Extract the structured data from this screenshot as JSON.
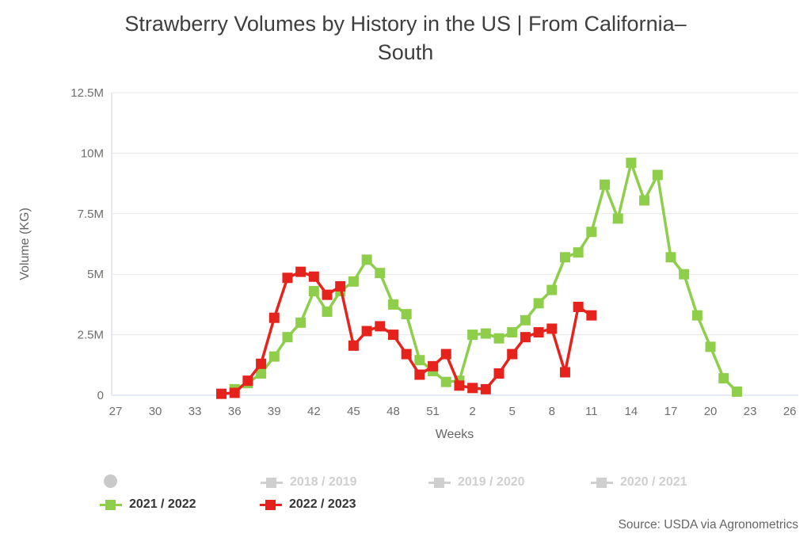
{
  "title": {
    "line1": "Strawberry Volumes by History in the US | From California–",
    "line2": "South"
  },
  "source": "Source: USDA via Agronometrics",
  "legend": {
    "hidden_marker_color": "#c9c9c9",
    "items": [
      {
        "label": "2018 / 2019",
        "color": "#cfcfcf",
        "state": "disabled"
      },
      {
        "label": "2019 / 2020",
        "color": "#cfcfcf",
        "state": "disabled"
      },
      {
        "label": "2020 / 2021",
        "color": "#cfcfcf",
        "state": "disabled"
      },
      {
        "label": "2021 / 2022",
        "color": "#8fce4b",
        "state": "active"
      },
      {
        "label": "2022 / 2023",
        "color": "#e5231c",
        "state": "active"
      }
    ]
  },
  "chart_data": {
    "type": "line",
    "title": "Strawberry Volumes by History in the US | From California–South",
    "xlabel": "Weeks",
    "ylabel": "Volume (KG)",
    "values_unit": "million KG",
    "ylim_M": [
      0,
      12.5
    ],
    "grid_color": "#e7e7e7",
    "axis_line_color": "#ccd6eb",
    "x_week_order_note": "weeks run 27..52 then 1..26",
    "x_tick_labels": [
      "27",
      "30",
      "33",
      "36",
      "39",
      "42",
      "45",
      "48",
      "51",
      "2",
      "5",
      "8",
      "11",
      "14",
      "17",
      "20",
      "23",
      "26"
    ],
    "y_ticks": [
      {
        "v": 0,
        "label": "0"
      },
      {
        "v": 2.5,
        "label": "2.5M"
      },
      {
        "v": 5,
        "label": "5M"
      },
      {
        "v": 7.5,
        "label": "7.5M"
      },
      {
        "v": 10,
        "label": "10M"
      },
      {
        "v": 12.5,
        "label": "12.5M"
      }
    ],
    "disabled_series": [
      "2018 / 2019",
      "2019 / 2020",
      "2020 / 2021"
    ],
    "series": [
      {
        "name": "2021 / 2022",
        "color": "#8fce4b",
        "points": [
          [
            "36",
            0.25
          ],
          [
            "37",
            0.5
          ],
          [
            "38",
            0.9
          ],
          [
            "39",
            1.6
          ],
          [
            "40",
            2.4
          ],
          [
            "41",
            3.0
          ],
          [
            "42",
            4.3
          ],
          [
            "43",
            3.45
          ],
          [
            "44",
            4.3
          ],
          [
            "45",
            4.7
          ],
          [
            "46",
            5.6
          ],
          [
            "47",
            5.05
          ],
          [
            "48",
            3.75
          ],
          [
            "49",
            3.35
          ],
          [
            "50",
            1.45
          ],
          [
            "51",
            1.0
          ],
          [
            "52",
            0.55
          ],
          [
            "1",
            0.6
          ],
          [
            "2",
            2.5
          ],
          [
            "3",
            2.55
          ],
          [
            "4",
            2.35
          ],
          [
            "5",
            2.6
          ],
          [
            "6",
            3.1
          ],
          [
            "7",
            3.8
          ],
          [
            "8",
            4.35
          ],
          [
            "9",
            5.7
          ],
          [
            "10",
            5.9
          ],
          [
            "11",
            6.75
          ],
          [
            "12",
            8.7
          ],
          [
            "13",
            7.3
          ],
          [
            "14",
            9.6
          ],
          [
            "15",
            8.05
          ],
          [
            "16",
            9.1
          ],
          [
            "17",
            5.7
          ],
          [
            "18",
            5.0
          ],
          [
            "19",
            3.3
          ],
          [
            "20",
            2.0
          ],
          [
            "21",
            0.7
          ],
          [
            "22",
            0.15
          ]
        ]
      },
      {
        "name": "2022 / 2023",
        "color": "#e5231c",
        "points": [
          [
            "35",
            0.06
          ],
          [
            "36",
            0.1
          ],
          [
            "37",
            0.6
          ],
          [
            "38",
            1.3
          ],
          [
            "39",
            3.2
          ],
          [
            "40",
            4.85
          ],
          [
            "41",
            5.1
          ],
          [
            "42",
            4.9
          ],
          [
            "43",
            4.15
          ],
          [
            "44",
            4.5
          ],
          [
            "45",
            2.05
          ],
          [
            "46",
            2.65
          ],
          [
            "47",
            2.85
          ],
          [
            "48",
            2.5
          ],
          [
            "49",
            1.7
          ],
          [
            "50",
            0.85
          ],
          [
            "51",
            1.2
          ],
          [
            "52",
            1.7
          ],
          [
            "1",
            0.4
          ],
          [
            "2",
            0.3
          ],
          [
            "3",
            0.25
          ],
          [
            "4",
            0.9
          ],
          [
            "5",
            1.7
          ],
          [
            "6",
            2.4
          ],
          [
            "7",
            2.6
          ],
          [
            "8",
            2.75
          ],
          [
            "9",
            0.95
          ],
          [
            "10",
            3.65
          ],
          [
            "11",
            3.3
          ]
        ]
      }
    ]
  }
}
